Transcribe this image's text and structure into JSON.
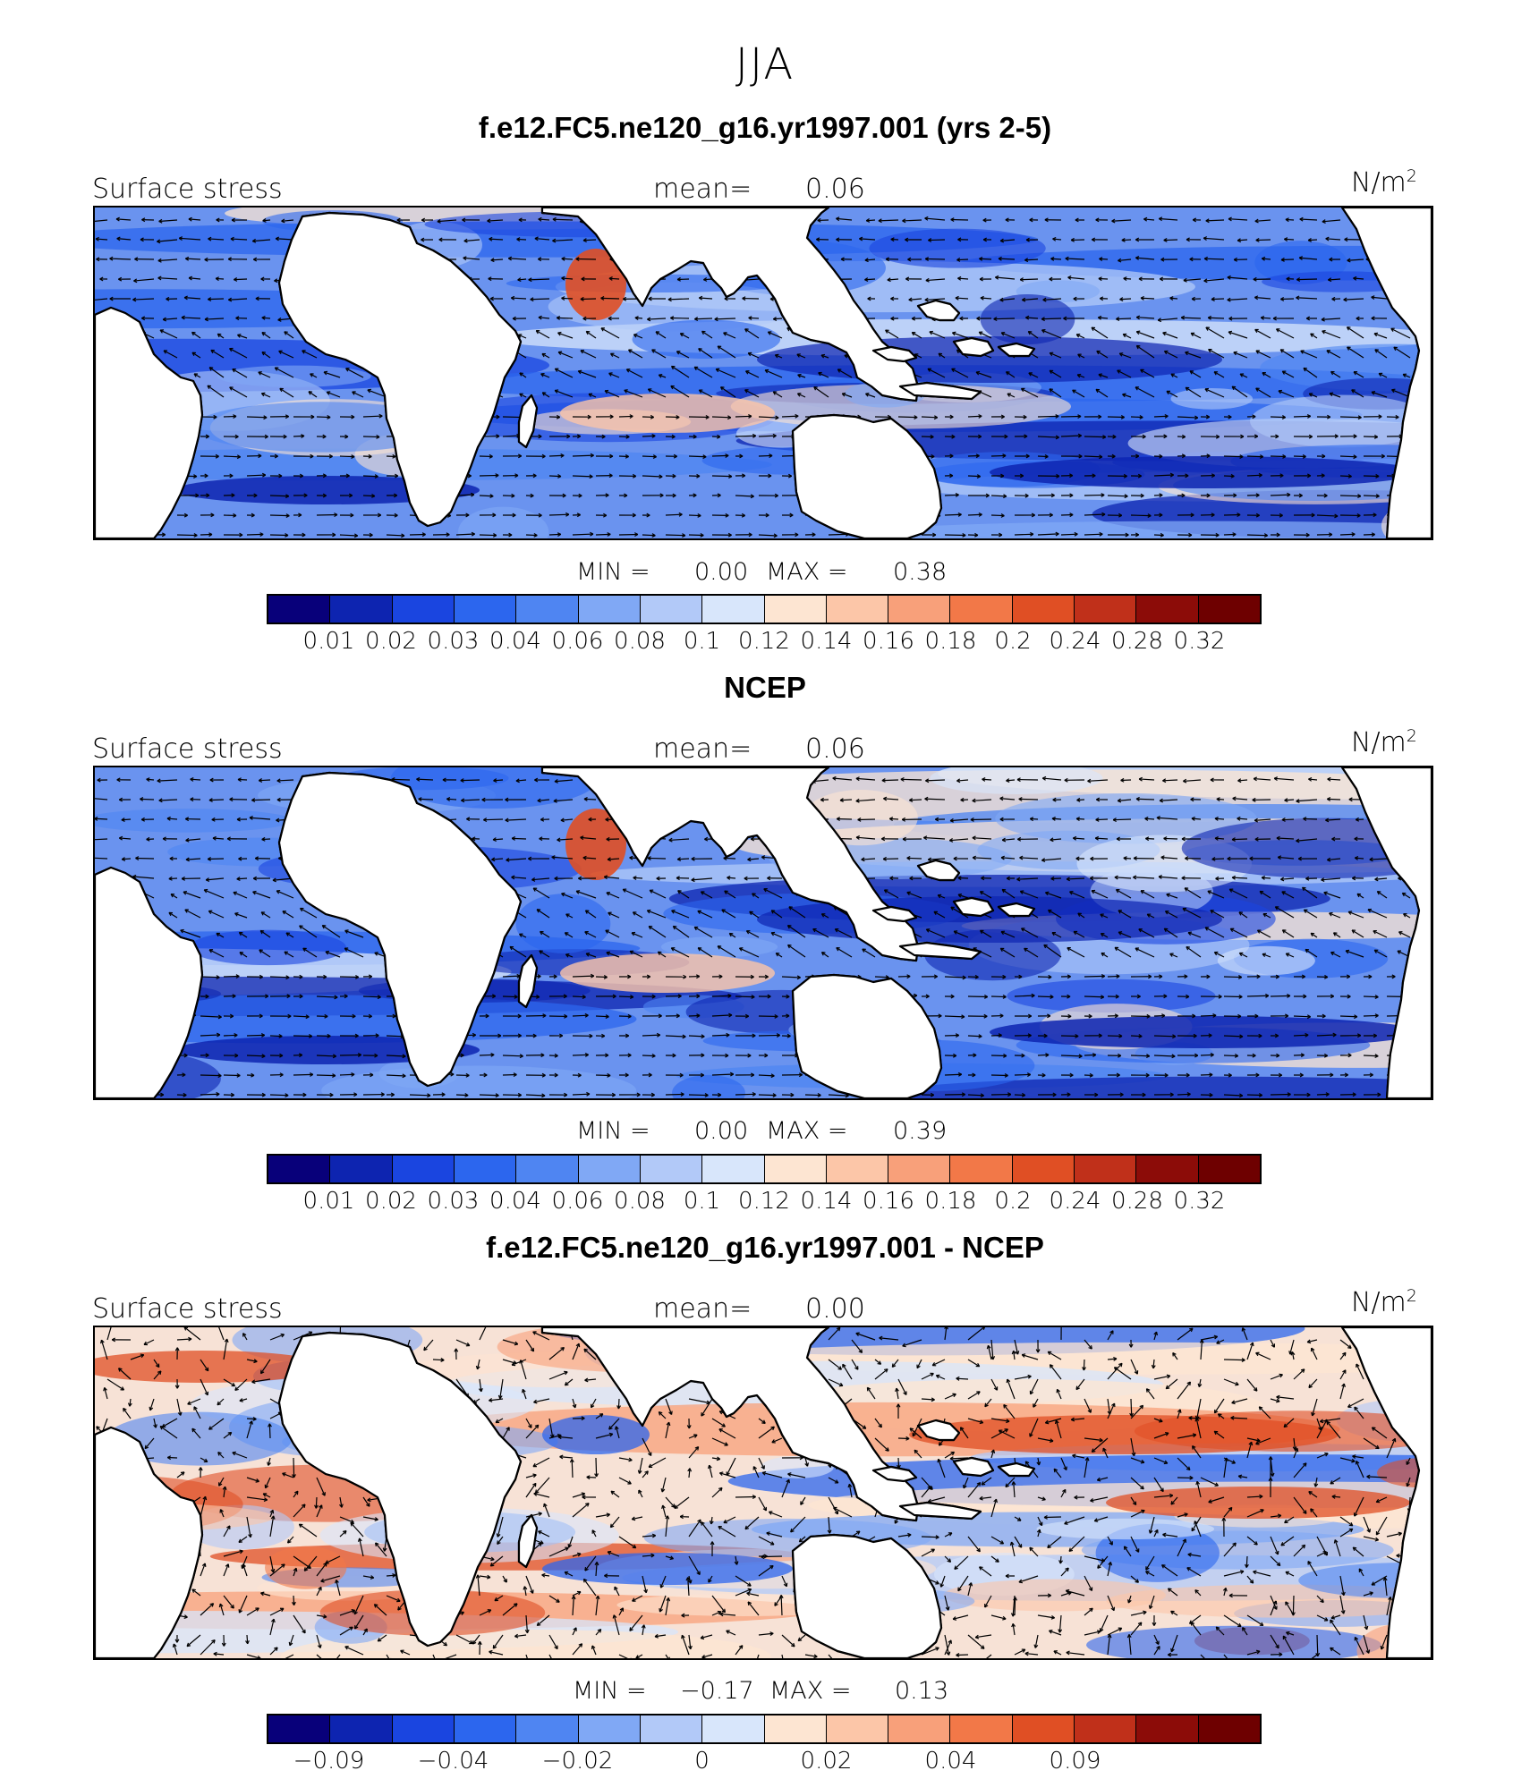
{
  "title": "JJA",
  "panels": [
    {
      "title": "f.e12.FC5.ne120_g16.yr1997.001 (yrs 2-5)",
      "left_label": "Surface stress",
      "mean_label": "mean=",
      "mean_value": "0.06",
      "units": "N/m",
      "units_sup": "2",
      "min_label": "MIN =",
      "min_value": "0.00",
      "max_label": "MAX =",
      "max_value": "0.38",
      "tick_labels": [
        "0.01",
        "0.02",
        "0.03",
        "0.04",
        "0.06",
        "0.08",
        "0.1",
        "0.12",
        "0.14",
        "0.16",
        "0.18",
        "0.2",
        "0.24",
        "0.28",
        "0.32"
      ],
      "palette": "abs"
    },
    {
      "title": "NCEP",
      "left_label": "Surface stress",
      "mean_label": "mean=",
      "mean_value": "0.06",
      "units": "N/m",
      "units_sup": "2",
      "min_label": "MIN =",
      "min_value": "0.00",
      "max_label": "MAX =",
      "max_value": "0.39",
      "tick_labels": [
        "0.01",
        "0.02",
        "0.03",
        "0.04",
        "0.06",
        "0.08",
        "0.1",
        "0.12",
        "0.14",
        "0.16",
        "0.18",
        "0.2",
        "0.24",
        "0.28",
        "0.32"
      ],
      "palette": "abs"
    },
    {
      "title": "f.e12.FC5.ne120_g16.yr1997.001 - NCEP",
      "left_label": "Surface stress",
      "mean_label": "mean=",
      "mean_value": "0.00",
      "units": "N/m",
      "units_sup": "2",
      "min_label": "MIN =",
      "min_value": "−0.17",
      "max_label": "MAX =",
      "max_value": "0.13",
      "tick_labels": [
        "−0.09",
        "",
        "−0.04",
        "",
        "−0.02",
        "",
        "0",
        "",
        "0.02",
        "",
        "0.04",
        "",
        "0.09",
        ""
      ],
      "palette": "diff"
    }
  ],
  "colors": {
    "bins": [
      "#08007a",
      "#0d24b0",
      "#1a45e0",
      "#2c66ee",
      "#4f85f2",
      "#80a8f5",
      "#b2c9f8",
      "#d8e6fb",
      "#fde5d2",
      "#fcc6a8",
      "#f8a07a",
      "#f27848",
      "#e04f24",
      "#c0301a",
      "#8c0c08",
      "#6e0000"
    ]
  },
  "map_shading": {
    "panel_1": "ocean field dominated by blue (0.02–0.08 N/m2) with orange patches in Arabian Sea and SE trades",
    "panel_2": "similar blue pattern, blockier grid, orange in Arabian Sea",
    "panel_3": "difference field with orange bands (positive) and blue bands (negative) across oceans"
  }
}
